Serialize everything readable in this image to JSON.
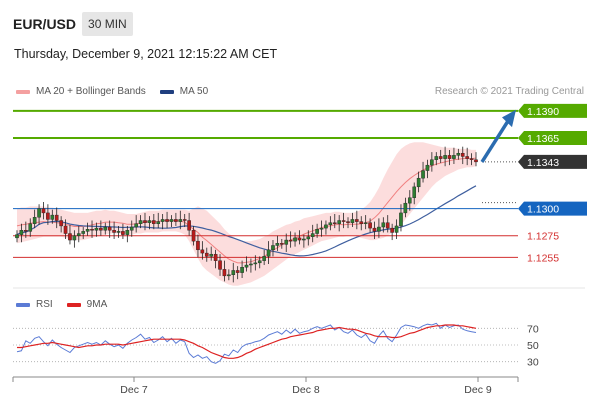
{
  "header": {
    "pair": "EUR/USD",
    "timeframe": "30 MIN",
    "datetime": "Thursday, December 9, 2021 12:15:22 AM CET",
    "credit": "Research © 2021 Trading Central"
  },
  "legend": {
    "bb_label": "MA 20 + Bollinger Bands",
    "ma50_label": "MA 50",
    "rsi_label": "RSI",
    "rsi_ma_label": "9MA"
  },
  "colors": {
    "candle_up": "#2e7d32",
    "candle_down": "#b71c1c",
    "bollinger_fill": "#fbd2d2",
    "ma20": "#f08080",
    "ma50": "#3f5f9f",
    "resistance": "#55aa00",
    "support_blue": "#1565c0",
    "support_red": "#d32f2f",
    "current_price": "#333333",
    "arrow": "#2b6cb0",
    "rsi": "#5b7bd5",
    "rsi_ma": "#dd2222"
  },
  "chart_data": [
    {
      "type": "candlestick",
      "title": "EUR/USD 30 MIN",
      "x_tick_labels": [
        "Dec 7",
        "Dec 8",
        "Dec 9"
      ],
      "ylim": [
        1.1225,
        1.14
      ],
      "grid": false,
      "legend_position": "top-left",
      "levels": [
        {
          "label": "1.1390",
          "value": 1.139,
          "kind": "resistance",
          "color": "#55aa00"
        },
        {
          "label": "1.1365",
          "value": 1.1365,
          "kind": "resistance",
          "color": "#55aa00"
        },
        {
          "label": "1.1343",
          "value": 1.1343,
          "kind": "current",
          "color": "#333333"
        },
        {
          "label": "1.1300",
          "value": 1.13,
          "kind": "pivot",
          "color": "#1565c0"
        },
        {
          "label": "1.1275",
          "value": 1.1275,
          "kind": "support",
          "color": "#d32f2f"
        },
        {
          "label": "1.1255",
          "value": 1.1255,
          "kind": "support",
          "color": "#d32f2f"
        }
      ],
      "close": [
        1.1276,
        1.128,
        1.1279,
        1.1286,
        1.1292,
        1.13,
        1.1296,
        1.129,
        1.1294,
        1.1289,
        1.1284,
        1.1277,
        1.1271,
        1.1275,
        1.1277,
        1.1279,
        1.1281,
        1.128,
        1.1282,
        1.128,
        1.1283,
        1.128,
        1.1278,
        1.1279,
        1.1276,
        1.128,
        1.1283,
        1.1286,
        1.1289,
        1.1287,
        1.1289,
        1.1286,
        1.1288,
        1.129,
        1.1288,
        1.129,
        1.1288,
        1.129,
        1.1289,
        1.128,
        1.127,
        1.1262,
        1.1259,
        1.1256,
        1.1258,
        1.1252,
        1.1244,
        1.1238,
        1.1239,
        1.1243,
        1.1241,
        1.1246,
        1.1248,
        1.1249,
        1.125,
        1.1252,
        1.1256,
        1.1262,
        1.1266,
        1.1268,
        1.1267,
        1.1271,
        1.127,
        1.1273,
        1.1271,
        1.1272,
        1.1274,
        1.1277,
        1.1281,
        1.1282,
        1.1285,
        1.1287,
        1.1286,
        1.1289,
        1.1288,
        1.1287,
        1.129,
        1.1288,
        1.1286,
        1.1287,
        1.1282,
        1.1279,
        1.1283,
        1.1287,
        1.1282,
        1.1278,
        1.1284,
        1.1296,
        1.1305,
        1.131,
        1.132,
        1.1328,
        1.1335,
        1.134,
        1.1345,
        1.1348,
        1.1346,
        1.1349,
        1.1346,
        1.1349,
        1.1351,
        1.1348,
        1.1346,
        1.1345,
        1.1343
      ],
      "ma20_upper": [
        1.13,
        1.1301,
        1.1301,
        1.1302,
        1.1302,
        1.1302,
        1.1302,
        1.1301,
        1.1301,
        1.13,
        1.1299,
        1.1298,
        1.1297,
        1.1296,
        1.1296,
        1.1296,
        1.1296,
        1.1297,
        1.1298,
        1.1298,
        1.1299,
        1.1298,
        1.1298,
        1.1297,
        1.1296,
        1.1295,
        1.1295,
        1.1295,
        1.1296,
        1.1297,
        1.1298,
        1.1298,
        1.1298,
        1.1299,
        1.1299,
        1.1299,
        1.1299,
        1.1299,
        1.1299,
        1.1298,
        1.13,
        1.1302,
        1.13,
        1.1298,
        1.1294,
        1.129,
        1.1286,
        1.1281,
        1.1277,
        1.1274,
        1.1271,
        1.127,
        1.127,
        1.127,
        1.1271,
        1.1272,
        1.1274,
        1.1276,
        1.1279,
        1.1281,
        1.1283,
        1.1285,
        1.1286,
        1.1288,
        1.1289,
        1.1291,
        1.1292,
        1.1293,
        1.1294,
        1.1295,
        1.1296,
        1.1296,
        1.1297,
        1.1297,
        1.1296,
        1.1296,
        1.1296,
        1.1297,
        1.1299,
        1.1302,
        1.1306,
        1.1312,
        1.1319,
        1.1328,
        1.1336,
        1.1343,
        1.135,
        1.1355,
        1.1358,
        1.136,
        1.1361,
        1.1361,
        1.1361,
        1.136,
        1.1359,
        1.1358,
        1.1357,
        1.1356,
        1.1356,
        1.1356,
        1.1355,
        1.1355,
        1.1355,
        1.1354,
        1.1354
      ],
      "ma20_lower": [
        1.1268,
        1.1269,
        1.127,
        1.1271,
        1.1272,
        1.1273,
        1.1274,
        1.1274,
        1.1274,
        1.1274,
        1.1274,
        1.1273,
        1.1272,
        1.1271,
        1.1271,
        1.1271,
        1.1272,
        1.1273,
        1.1274,
        1.1275,
        1.1276,
        1.1277,
        1.1277,
        1.1277,
        1.1277,
        1.1276,
        1.1276,
        1.1277,
        1.1277,
        1.1278,
        1.1278,
        1.1278,
        1.1278,
        1.1279,
        1.1279,
        1.1279,
        1.1279,
        1.1278,
        1.1276,
        1.127,
        1.1262,
        1.1254,
        1.1247,
        1.1243,
        1.124,
        1.1237,
        1.1234,
        1.1232,
        1.123,
        1.1229,
        1.1229,
        1.123,
        1.1231,
        1.1232,
        1.1234,
        1.1236,
        1.1238,
        1.1241,
        1.1244,
        1.1247,
        1.125,
        1.1253,
        1.1256,
        1.1258,
        1.126,
        1.1262,
        1.1264,
        1.1266,
        1.1268,
        1.127,
        1.1271,
        1.1272,
        1.1273,
        1.1274,
        1.1274,
        1.1275,
        1.1275,
        1.1274,
        1.1273,
        1.1272,
        1.1271,
        1.1271,
        1.1272,
        1.1273,
        1.1275,
        1.1278,
        1.1281,
        1.1285,
        1.129,
        1.1295,
        1.13,
        1.1305,
        1.131,
        1.1315,
        1.132,
        1.1324,
        1.1327,
        1.133,
        1.1332,
        1.1334,
        1.1336,
        1.1337,
        1.1338,
        1.1338,
        1.1339
      ],
      "rsi": [
        42,
        43,
        55,
        52,
        58,
        60,
        54,
        49,
        56,
        51,
        47,
        44,
        41,
        47,
        49,
        51,
        53,
        51,
        53,
        50,
        55,
        51,
        48,
        50,
        46,
        52,
        56,
        59,
        63,
        57,
        59,
        53,
        56,
        60,
        54,
        58,
        52,
        56,
        54,
        40,
        35,
        38,
        34,
        36,
        30,
        28,
        31,
        39,
        37,
        44,
        41,
        48,
        51,
        52,
        54,
        55,
        58,
        62,
        64,
        66,
        63,
        68,
        64,
        69,
        64,
        66,
        67,
        70,
        72,
        70,
        72,
        74,
        68,
        71,
        66,
        64,
        68,
        62,
        59,
        63,
        55,
        52,
        61,
        67,
        58,
        54,
        62,
        71,
        74,
        73,
        72,
        70,
        73,
        75,
        74,
        76,
        70,
        74,
        71,
        73,
        74,
        69,
        67,
        66,
        65
      ],
      "rsi_ma": [
        47,
        47,
        48,
        49,
        50,
        51,
        52,
        52,
        53,
        52,
        51,
        50,
        49,
        48,
        47,
        48,
        49,
        49,
        50,
        50,
        51,
        51,
        51,
        51,
        50,
        51,
        52,
        53,
        54,
        55,
        56,
        57,
        57,
        57,
        57,
        57,
        57,
        57,
        56,
        54,
        52,
        49,
        47,
        44,
        41,
        39,
        37,
        35,
        34,
        34,
        35,
        37,
        40,
        42,
        45,
        47,
        49,
        51,
        53,
        55,
        57,
        58,
        60,
        61,
        62,
        63,
        64,
        65,
        67,
        68,
        69,
        70,
        70,
        71,
        70,
        69,
        69,
        68,
        66,
        64,
        63,
        61,
        60,
        60,
        60,
        59,
        59,
        60,
        62,
        64,
        65,
        67,
        69,
        71,
        72,
        73,
        73,
        74,
        74,
        74,
        73,
        73,
        72,
        71,
        70
      ],
      "rsi_ticks": [
        "70",
        "50",
        "30"
      ],
      "rsi_ylim": [
        20,
        80
      ]
    }
  ]
}
